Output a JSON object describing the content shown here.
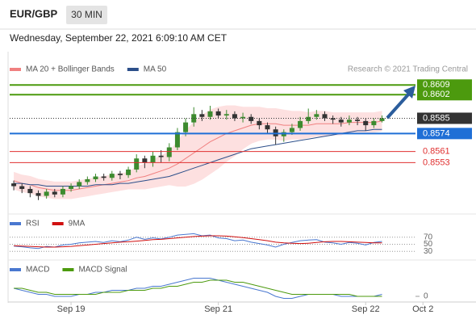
{
  "header": {
    "symbol": "EUR/GBP",
    "interval": "30 MIN",
    "timestamp": "Wednesday, September 22, 2021 6:09:10 AM CET",
    "credit": "Research © 2021 Trading Central"
  },
  "chart_data": [
    {
      "type": "candlestick",
      "xlim": [
        -0.5,
        55.5
      ],
      "ylim": [
        0.852,
        0.8615
      ],
      "up_color": "#3d8b2f",
      "down_color": "#333333",
      "open": [
        0.8538,
        0.8536,
        0.8534,
        0.8531,
        0.8529,
        0.8532,
        0.853,
        0.8534,
        0.8536,
        0.8539,
        0.8541,
        0.8543,
        0.8542,
        0.8545,
        0.8544,
        0.8548,
        0.8556,
        0.8553,
        0.8558,
        0.8557,
        0.8564,
        0.8575,
        0.8582,
        0.8588,
        0.8586,
        0.859,
        0.8587,
        0.8588,
        0.8585,
        0.8586,
        0.8583,
        0.858,
        0.8577,
        0.8572,
        0.8575,
        0.8578,
        0.8583,
        0.8586,
        0.8588,
        0.8585,
        0.8584,
        0.8582,
        0.8584,
        0.8583,
        0.858,
        0.8583
      ],
      "high": [
        0.854,
        0.8538,
        0.8536,
        0.8533,
        0.8534,
        0.8534,
        0.8536,
        0.8538,
        0.8541,
        0.8543,
        0.8545,
        0.8545,
        0.8547,
        0.8547,
        0.855,
        0.8559,
        0.8558,
        0.8561,
        0.8562,
        0.8567,
        0.8578,
        0.8585,
        0.8593,
        0.8591,
        0.8594,
        0.8592,
        0.8591,
        0.859,
        0.8589,
        0.8588,
        0.8585,
        0.8582,
        0.8579,
        0.8577,
        0.8581,
        0.8586,
        0.8592,
        0.8591,
        0.859,
        0.8587,
        0.8586,
        0.8587,
        0.8586,
        0.8585,
        0.8585,
        0.8587
      ],
      "low": [
        0.8533,
        0.8531,
        0.8528,
        0.8526,
        0.8527,
        0.8528,
        0.8528,
        0.8532,
        0.8534,
        0.8537,
        0.8539,
        0.854,
        0.854,
        0.8541,
        0.8542,
        0.8546,
        0.8549,
        0.855,
        0.8553,
        0.8554,
        0.8562,
        0.8572,
        0.8579,
        0.8583,
        0.8584,
        0.8585,
        0.8584,
        0.8583,
        0.8582,
        0.8581,
        0.8577,
        0.8574,
        0.8566,
        0.8568,
        0.8573,
        0.8576,
        0.8581,
        0.8584,
        0.8583,
        0.8581,
        0.8579,
        0.858,
        0.858,
        0.8576,
        0.8578,
        0.8582
      ],
      "close": [
        0.8536,
        0.8534,
        0.8531,
        0.8529,
        0.8532,
        0.853,
        0.8534,
        0.8536,
        0.8539,
        0.8541,
        0.8543,
        0.8542,
        0.8545,
        0.8544,
        0.8548,
        0.8556,
        0.8553,
        0.8558,
        0.8557,
        0.8564,
        0.8575,
        0.8582,
        0.8588,
        0.8586,
        0.859,
        0.8587,
        0.8588,
        0.8585,
        0.8586,
        0.8583,
        0.858,
        0.8577,
        0.8572,
        0.8575,
        0.8578,
        0.8583,
        0.8586,
        0.8588,
        0.8585,
        0.8584,
        0.8582,
        0.8584,
        0.8583,
        0.858,
        0.8583,
        0.8585
      ],
      "series": [
        {
          "name": "MA 20 + Bollinger Bands",
          "color": "#f08080",
          "band_color": "#fde0e0",
          "values": [
            0.854,
            0.8538,
            0.8537,
            0.8535,
            0.8534,
            0.8533,
            0.8533,
            0.8533,
            0.8534,
            0.8535,
            0.8536,
            0.8537,
            0.8538,
            0.8539,
            0.854,
            0.8542,
            0.8543,
            0.8545,
            0.8547,
            0.8549,
            0.8552,
            0.8556,
            0.856,
            0.8564,
            0.8568,
            0.8571,
            0.8574,
            0.8576,
            0.8578,
            0.858,
            0.8581,
            0.8581,
            0.8581,
            0.858,
            0.858,
            0.858,
            0.858,
            0.8581,
            0.8581,
            0.8581,
            0.8581,
            0.8582,
            0.8582,
            0.8582,
            0.8582,
            0.8583
          ],
          "upper": [
            0.8546,
            0.8544,
            0.8543,
            0.8541,
            0.854,
            0.8539,
            0.8539,
            0.8539,
            0.854,
            0.8541,
            0.8542,
            0.8543,
            0.8544,
            0.8545,
            0.8546,
            0.855,
            0.8552,
            0.8555,
            0.8558,
            0.8561,
            0.8568,
            0.8576,
            0.8582,
            0.8587,
            0.8591,
            0.8593,
            0.8594,
            0.8594,
            0.8593,
            0.8593,
            0.8593,
            0.8592,
            0.8592,
            0.8591,
            0.859,
            0.859,
            0.8589,
            0.859,
            0.859,
            0.8589,
            0.8589,
            0.8589,
            0.8589,
            0.8589,
            0.8589,
            0.859
          ],
          "lower": [
            0.8534,
            0.8532,
            0.8531,
            0.8529,
            0.8528,
            0.8527,
            0.8527,
            0.8527,
            0.8528,
            0.8529,
            0.853,
            0.8531,
            0.8532,
            0.8533,
            0.8534,
            0.8534,
            0.8534,
            0.8535,
            0.8536,
            0.8537,
            0.8536,
            0.8536,
            0.8538,
            0.8541,
            0.8545,
            0.8549,
            0.8554,
            0.8558,
            0.8563,
            0.8567,
            0.8569,
            0.857,
            0.857,
            0.8569,
            0.857,
            0.857,
            0.8571,
            0.8572,
            0.8572,
            0.8573,
            0.8573,
            0.8575,
            0.8575,
            0.8575,
            0.8575,
            0.8576
          ]
        },
        {
          "name": "MA 50",
          "color": "#2c4f8a",
          "values": [
            0.8538,
            0.8538,
            0.8537,
            0.8537,
            0.8536,
            0.8536,
            0.8536,
            0.8536,
            0.8536,
            0.8536,
            0.8537,
            0.8537,
            0.8537,
            0.8538,
            0.8538,
            0.8539,
            0.854,
            0.8541,
            0.8542,
            0.8543,
            0.8545,
            0.8547,
            0.8549,
            0.8551,
            0.8553,
            0.8555,
            0.8557,
            0.8559,
            0.8561,
            0.8563,
            0.8564,
            0.8565,
            0.8566,
            0.8567,
            0.8568,
            0.8569,
            0.857,
            0.8571,
            0.8572,
            0.8573,
            0.8574,
            0.8575,
            0.8576,
            0.8576,
            0.8577,
            0.8577
          ]
        }
      ],
      "levels": [
        {
          "value": 0.8609,
          "color": "#4c9a0e",
          "style": "box"
        },
        {
          "value": 0.8602,
          "color": "#4c9a0e",
          "style": "box"
        },
        {
          "value": 0.8585,
          "color": "#333333",
          "style": "dotted"
        },
        {
          "value": 0.8574,
          "color": "#1f6fd6",
          "style": "box"
        },
        {
          "value": 0.8561,
          "color": "#e03030",
          "style": "text"
        },
        {
          "value": 0.8553,
          "color": "#e03030",
          "style": "text"
        }
      ]
    },
    {
      "type": "line",
      "xlim": [
        -0.5,
        55.5
      ],
      "ylim": [
        10,
        90
      ],
      "yticks": [
        70,
        50,
        30
      ],
      "grid": true,
      "series": [
        {
          "name": "RSI",
          "color": "#4a78d0",
          "values": [
            45,
            43,
            40,
            38,
            44,
            42,
            48,
            50,
            54,
            56,
            58,
            55,
            60,
            57,
            62,
            70,
            64,
            68,
            65,
            70,
            76,
            78,
            80,
            74,
            76,
            68,
            66,
            60,
            62,
            56,
            52,
            48,
            42,
            50,
            55,
            60,
            62,
            63,
            56,
            54,
            50,
            55,
            53,
            48,
            55,
            58
          ]
        },
        {
          "name": "9MA",
          "color": "#d01010",
          "values": [
            46,
            45,
            44,
            43,
            42,
            42,
            43,
            44,
            46,
            48,
            50,
            52,
            54,
            56,
            57,
            59,
            61,
            63,
            64,
            66,
            68,
            70,
            72,
            73,
            74,
            74,
            73,
            71,
            69,
            66,
            63,
            60,
            56,
            54,
            53,
            52,
            53,
            55,
            57,
            58,
            58,
            57,
            56,
            55,
            54,
            54
          ]
        }
      ]
    },
    {
      "type": "line",
      "xlim": [
        -0.5,
        55.5
      ],
      "ylim": [
        -0.0002,
        0.001
      ],
      "yticks": [
        0
      ],
      "grid": false,
      "xticks": [
        {
          "value": 7,
          "label": "Sep 19"
        },
        {
          "value": 25,
          "label": "Sep 21"
        },
        {
          "value": 43,
          "label": "Sep 22"
        },
        {
          "value": 50,
          "label": "Oct 2"
        }
      ],
      "series": [
        {
          "name": "MACD",
          "color": "#4a78d0",
          "values": [
            0.0004,
            0.0003,
            0.0002,
            0.0001,
            0.0001,
            0.0,
            0.0,
            0.0,
            0.0001,
            0.0001,
            0.0002,
            0.0002,
            0.0003,
            0.0003,
            0.0003,
            0.0004,
            0.0004,
            0.0005,
            0.0005,
            0.0006,
            0.0007,
            0.0008,
            0.0009,
            0.0009,
            0.0009,
            0.0008,
            0.0007,
            0.0006,
            0.0005,
            0.0004,
            0.0003,
            0.0002,
            0.0,
            -0.0001,
            -0.0001,
            0.0,
            0.0001,
            0.0001,
            0.0001,
            0.0001,
            0.0,
            0.0,
            0.0,
            0.0,
            0.0,
            0.0001
          ]
        },
        {
          "name": "MACD Signal",
          "color": "#4c9a0e",
          "values": [
            0.0004,
            0.0004,
            0.0003,
            0.0002,
            0.0002,
            0.0001,
            0.0001,
            0.0001,
            0.0001,
            0.0001,
            0.0001,
            0.0002,
            0.0002,
            0.0002,
            0.0003,
            0.0003,
            0.0003,
            0.0004,
            0.0004,
            0.0005,
            0.0005,
            0.0006,
            0.0007,
            0.0007,
            0.0008,
            0.0008,
            0.0008,
            0.0007,
            0.0007,
            0.0006,
            0.0005,
            0.0004,
            0.0003,
            0.0002,
            0.0001,
            0.0001,
            0.0001,
            0.0001,
            0.0001,
            0.0001,
            0.0001,
            0.0001,
            0.0,
            0.0,
            0.0,
            0.0
          ]
        }
      ]
    }
  ]
}
